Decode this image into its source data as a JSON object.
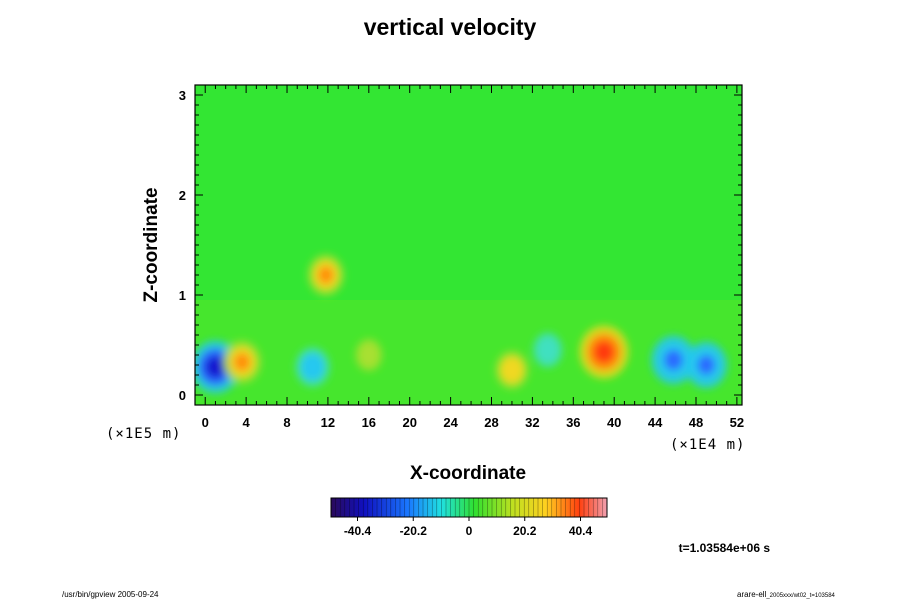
{
  "chart_data": {
    "type": "heatmap",
    "title": "vertical velocity",
    "xlabel": "X-coordinate",
    "ylabel": "Z-coordinate",
    "x_unit": "(×1E4 m)",
    "y_unit": "(×1E5 m)",
    "x_ticks": [
      "0",
      "4",
      "8",
      "12",
      "16",
      "20",
      "24",
      "28",
      "32",
      "36",
      "40",
      "44",
      "48",
      "52"
    ],
    "y_ticks": [
      "0",
      "1",
      "2",
      "3"
    ],
    "xlim": [
      -1,
      52.5
    ],
    "ylim": [
      -0.1,
      3.1
    ],
    "colorbar": {
      "range": [
        -50,
        50
      ],
      "ticks": [
        "-40.4",
        "-20.2",
        "0",
        "20.2",
        "40.4"
      ]
    },
    "features": [
      {
        "x": 1.0,
        "z": 0.28,
        "w": -45
      },
      {
        "x": 3.6,
        "z": 0.33,
        "w": 28
      },
      {
        "x": 10.5,
        "z": 0.28,
        "w": -22
      },
      {
        "x": 11.8,
        "z": 1.2,
        "w": 25
      },
      {
        "x": 16.0,
        "z": 0.4,
        "w": 10
      },
      {
        "x": 30.0,
        "z": 0.25,
        "w": 20
      },
      {
        "x": 33.5,
        "z": 0.45,
        "w": -14
      },
      {
        "x": 39.0,
        "z": 0.43,
        "w": 45
      },
      {
        "x": 45.8,
        "z": 0.35,
        "w": -38
      },
      {
        "x": 49.0,
        "z": 0.3,
        "w": -34
      }
    ]
  },
  "annotations": {
    "time": "t=1.03584e+06 s",
    "footer_left": "/usr/bin/gpview 2005-09-24",
    "footer_right_main": "arare-ell",
    "footer_right_sub": "_2005xxx/wt02_t=103584"
  }
}
